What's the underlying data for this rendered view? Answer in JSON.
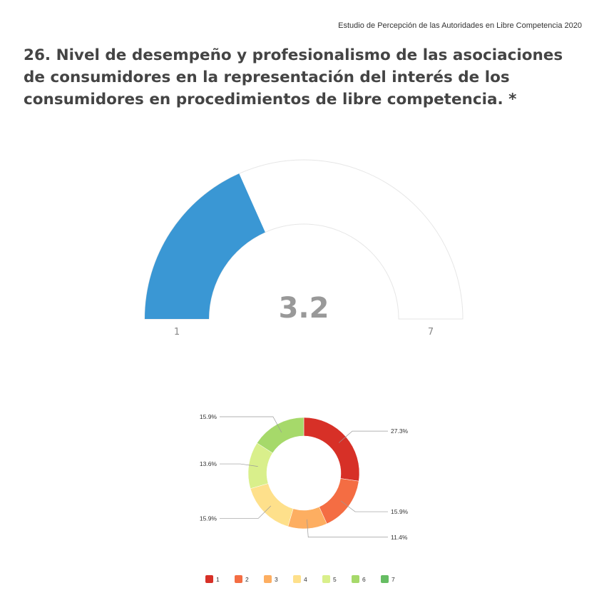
{
  "header": {
    "note": "Estudio de Percepción de las Autoridades en Libre Competencia 2020"
  },
  "question": {
    "title": "26. Nivel de desempeño y profesionalismo de las asociaciones de consumidores en la representación del interés de los consumidores en procedimientos de libre competencia. *"
  },
  "chart_data": [
    {
      "type": "gauge",
      "value": 3.2,
      "value_label": "3.2",
      "min": 1,
      "max": 7,
      "min_label": "1",
      "max_label": "7",
      "fill_color": "#3a97d4"
    },
    {
      "type": "pie",
      "donut": true,
      "categories": [
        "1",
        "2",
        "3",
        "4",
        "5",
        "6",
        "7"
      ],
      "values": [
        27.3,
        15.9,
        11.4,
        15.9,
        13.6,
        15.9,
        0
      ],
      "labels": [
        "27.3%",
        "15.9%",
        "11.4%",
        "15.9%",
        "13.6%",
        "15.9%",
        ""
      ],
      "colors": [
        "#d73027",
        "#f46d43",
        "#fdae61",
        "#fee08b",
        "#d9ef8b",
        "#a6d96a",
        "#66bd63"
      ],
      "legend_position": "bottom"
    }
  ]
}
